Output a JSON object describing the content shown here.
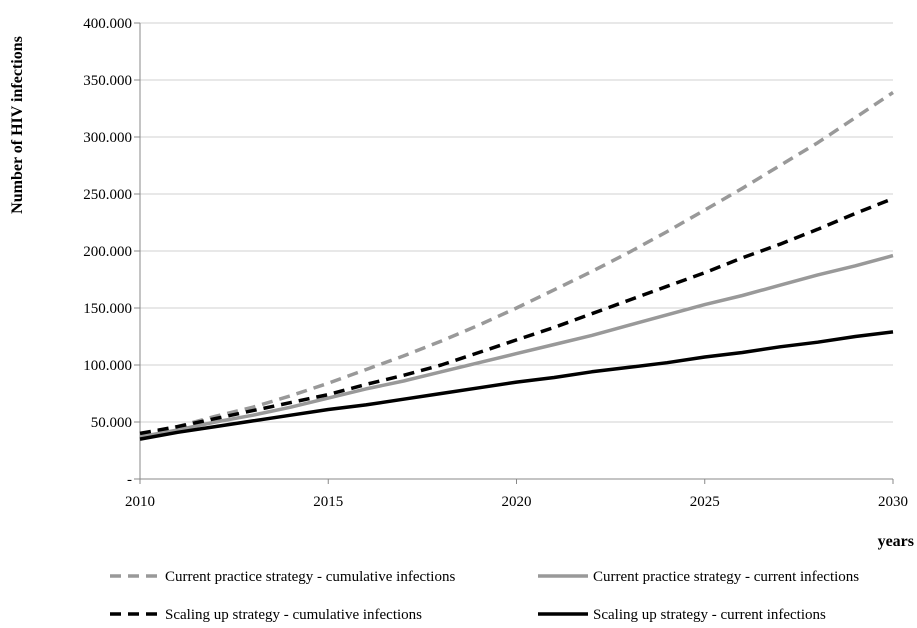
{
  "chart_data": {
    "type": "line",
    "title": "",
    "xlabel": "years",
    "ylabel": "Number of HIV infections",
    "x": [
      2010,
      2011,
      2012,
      2013,
      2014,
      2015,
      2016,
      2017,
      2018,
      2019,
      2020,
      2021,
      2022,
      2023,
      2024,
      2025,
      2026,
      2027,
      2028,
      2029,
      2030
    ],
    "xlim": [
      2010,
      2030
    ],
    "ylim": [
      0,
      400000
    ],
    "x_ticks": [
      2010,
      2015,
      2020,
      2025,
      2030
    ],
    "x_tick_labels": [
      "2010",
      "2015",
      "2020",
      "2025",
      "2030"
    ],
    "y_ticks": [
      0,
      50000,
      100000,
      150000,
      200000,
      250000,
      300000,
      350000,
      400000
    ],
    "y_tick_labels": [
      "-",
      "50.000",
      "100.000",
      "150.000",
      "200.000",
      "250.000",
      "300.000",
      "350.000",
      "400.000"
    ],
    "grid": "horizontal",
    "legend_position": "bottom",
    "series": [
      {
        "name": "Current practice strategy - cumulative infections",
        "color": "#999999",
        "style": "dashed",
        "values": [
          38000,
          46000,
          55000,
          63000,
          73000,
          84000,
          96000,
          108000,
          121000,
          135000,
          150000,
          166000,
          182000,
          199000,
          217000,
          236000,
          255000,
          275000,
          295000,
          317000,
          339000
        ]
      },
      {
        "name": "Current practice strategy - current infections",
        "color": "#999999",
        "style": "solid",
        "values": [
          37000,
          43000,
          50000,
          56000,
          63000,
          71000,
          79000,
          86000,
          94000,
          102000,
          110000,
          118000,
          126000,
          135000,
          144000,
          153000,
          161000,
          170000,
          179000,
          187000,
          196000
        ]
      },
      {
        "name": "Scaling up strategy - cumulative infections",
        "color": "#000000",
        "style": "dashed",
        "values": [
          40000,
          46000,
          53000,
          60000,
          67000,
          74000,
          83000,
          91000,
          100000,
          111000,
          122000,
          133000,
          145000,
          157000,
          169000,
          181000,
          194000,
          206000,
          219000,
          233000,
          246000
        ]
      },
      {
        "name": "Scaling up strategy - current infections",
        "color": "#000000",
        "style": "solid",
        "values": [
          35000,
          41000,
          46000,
          51000,
          56000,
          61000,
          65000,
          70000,
          75000,
          80000,
          85000,
          89000,
          94000,
          98000,
          102000,
          107000,
          111000,
          116000,
          120000,
          125000,
          129000
        ]
      }
    ]
  }
}
